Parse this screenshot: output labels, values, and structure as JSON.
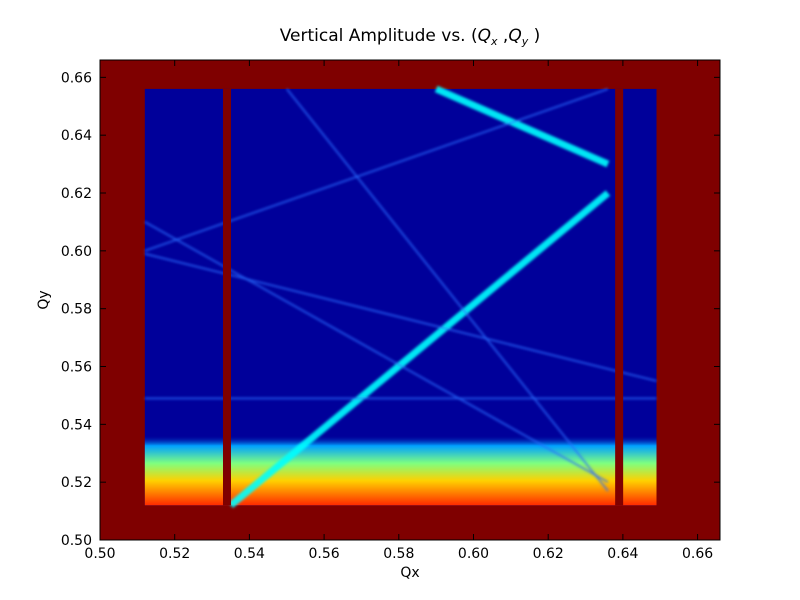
{
  "chart_data": {
    "type": "heatmap",
    "title": "Vertical Amplitude vs. (Q_x ,Q_y )",
    "title_parts": {
      "prefix": "Vertical Amplitude vs. (",
      "q1": "Q",
      "sub1": "x",
      "sep": " ,",
      "q2": "Q",
      "sub2": "y",
      "suffix": " )"
    },
    "xlabel": "Qx",
    "ylabel": "Qy",
    "xlim": [
      0.5,
      0.666
    ],
    "ylim": [
      0.5,
      0.666
    ],
    "xticks": [
      "0.50",
      "0.52",
      "0.54",
      "0.56",
      "0.58",
      "0.60",
      "0.62",
      "0.64",
      "0.66"
    ],
    "yticks": [
      "0.50",
      "0.52",
      "0.54",
      "0.56",
      "0.58",
      "0.60",
      "0.62",
      "0.64",
      "0.66"
    ],
    "colormap": "jet",
    "colors": {
      "saturated": "#7f0000",
      "background": "#00009a",
      "resonance": "#00ffff"
    },
    "grid": false,
    "scanned_region": {
      "qx": [
        0.512,
        0.649
      ],
      "qy": [
        0.512,
        0.656
      ]
    },
    "saturated_columns_qx": [
      0.534,
      0.639
    ],
    "resonance_lines": [
      {
        "from": [
          0.535,
          0.512
        ],
        "to": [
          0.636,
          0.62
        ]
      },
      {
        "from": [
          0.59,
          0.656
        ],
        "to": [
          0.636,
          0.63
        ]
      },
      {
        "from": [
          0.55,
          0.656
        ],
        "to": [
          0.636,
          0.517
        ]
      },
      {
        "from": [
          0.512,
          0.61
        ],
        "to": [
          0.636,
          0.52
        ]
      },
      {
        "from": [
          0.512,
          0.599
        ],
        "to": [
          0.649,
          0.555
        ]
      },
      {
        "from": [
          0.512,
          0.6
        ],
        "to": [
          0.636,
          0.656
        ]
      },
      {
        "from": [
          0.512,
          0.549
        ],
        "to": [
          0.649,
          0.549
        ]
      }
    ]
  }
}
